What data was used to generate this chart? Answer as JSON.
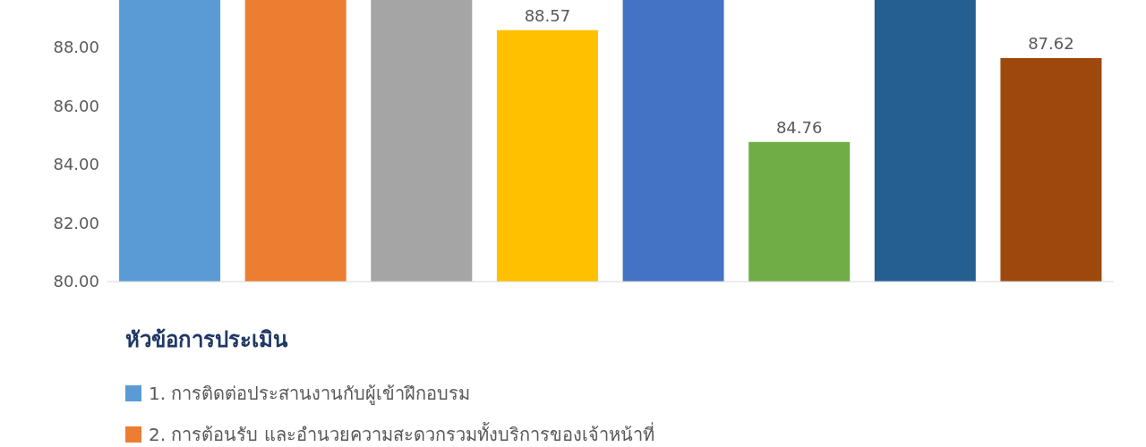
{
  "chart_data": {
    "type": "bar",
    "categories": [
      null,
      null,
      null,
      null,
      null,
      null,
      null,
      null
    ],
    "series": [
      {
        "name": "1.  การติดต่อประสานงานกับผู้เข้าฝึกอบรม",
        "color": "#5b9bd5",
        "values": [
          89.6,
          null,
          null,
          null,
          null,
          null,
          null,
          null
        ]
      },
      {
        "name": "2.  การต้อนรับ และอำนวยความสะดวกรวมทั้งบริการของเจ้าหน้าที่",
        "color": "#ed7d31",
        "values": [
          null,
          89.6,
          null,
          null,
          null,
          null,
          null,
          null
        ]
      },
      {
        "color": "#a5a5a5",
        "values": [
          null,
          null,
          89.6,
          null,
          null,
          null,
          null,
          null
        ]
      },
      {
        "color": "#ffc000",
        "values": [
          null,
          null,
          null,
          88.57,
          null,
          null,
          null,
          null
        ],
        "value_labels": [
          null,
          null,
          null,
          "88.57",
          null,
          null,
          null,
          null
        ]
      },
      {
        "color": "#4472c4",
        "values": [
          null,
          null,
          null,
          null,
          89.6,
          null,
          null,
          null
        ]
      },
      {
        "color": "#70ad47",
        "values": [
          null,
          null,
          null,
          null,
          null,
          84.76,
          null,
          null
        ],
        "value_labels": [
          null,
          null,
          null,
          null,
          null,
          "84.76",
          null,
          null
        ]
      },
      {
        "color": "#255e91",
        "values": [
          null,
          null,
          null,
          null,
          null,
          null,
          89.6,
          null
        ]
      },
      {
        "color": "#9e480e",
        "values": [
          null,
          null,
          null,
          null,
          null,
          null,
          null,
          87.62
        ],
        "value_labels": [
          null,
          null,
          null,
          null,
          null,
          null,
          null,
          "87.62"
        ]
      }
    ],
    "ylim": [
      80,
      89.6
    ],
    "yticks": [
      {
        "value": 80,
        "label": "80.00"
      },
      {
        "value": 82,
        "label": "82.00"
      },
      {
        "value": 84,
        "label": "84.00"
      },
      {
        "value": 86,
        "label": "86.00"
      },
      {
        "value": 88,
        "label": "88.00"
      }
    ],
    "grid": false,
    "legend": "bottom",
    "legend_title": "หัวข้อการประเมิน"
  }
}
